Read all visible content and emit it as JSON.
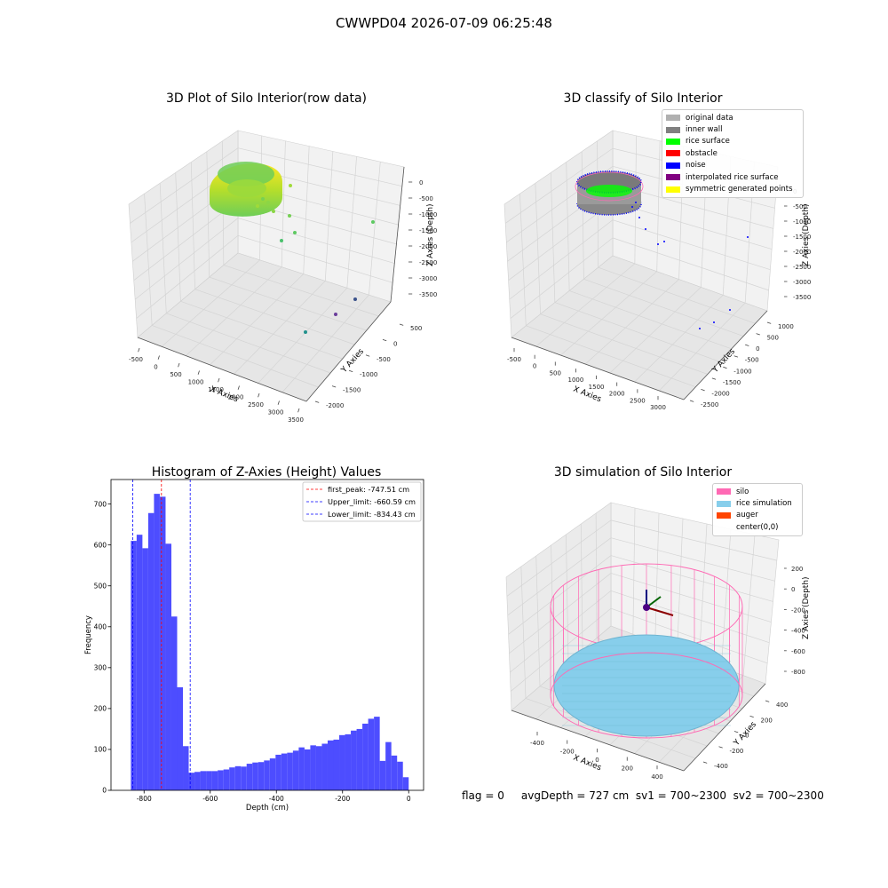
{
  "suptitle": "CWWPD04 2026-07-09 06:25:48",
  "status": {
    "text": "flag = 0     avgDepth = 727 cm  sv1 = 700~2300  sv2 = 700~2300"
  },
  "chart_data": [
    {
      "type": "scatter",
      "title": "3D Plot of Silo Interior(row data)",
      "xlabel": "X Axies",
      "ylabel": "Y Axies",
      "zlabel": "Z Axies (Depth)",
      "x_ticks": [
        "-500",
        "0",
        "500",
        "1000",
        "1500",
        "2000",
        "2500",
        "3000",
        "3500"
      ],
      "y_ticks": [
        "500",
        "0",
        "-500",
        "-1000",
        "-1500",
        "-2000"
      ],
      "z_ticks": [
        "0",
        "-500",
        "-1000",
        "-1500",
        "-2000",
        "-2500",
        "-3000",
        "-3500"
      ],
      "colormap": "viridis (by depth)",
      "scattered_points": [
        {
          "x": 900,
          "y": 200,
          "z": -250
        },
        {
          "x": 1100,
          "y": 100,
          "z": -500
        },
        {
          "x": 1300,
          "y": -50,
          "z": -750
        },
        {
          "x": 1500,
          "y": -200,
          "z": -1100
        },
        {
          "x": 2500,
          "y": -400,
          "z": -1250
        },
        {
          "x": 2900,
          "y": -1400,
          "z": -3100
        },
        {
          "x": 3100,
          "y": -1500,
          "z": -3300
        },
        {
          "x": 2700,
          "y": -1300,
          "z": -3500
        }
      ]
    },
    {
      "type": "scatter",
      "title": "3D classify of Silo Interior",
      "xlabel": "X Axies",
      "ylabel": "Y Axies",
      "zlabel": "Z Axies (Depth)",
      "x_ticks": [
        "-500",
        "0",
        "500",
        "1000",
        "1500",
        "2000",
        "2500",
        "3000"
      ],
      "y_ticks": [
        "1000",
        "500",
        "0",
        "-500",
        "-1000",
        "-1500",
        "-2000",
        "-2500"
      ],
      "z_ticks": [
        "0",
        "-500",
        "-1000",
        "-1500",
        "-2000",
        "-2500",
        "-3000",
        "-3500"
      ],
      "legend_position": "top-right",
      "legend": [
        {
          "name": "original data",
          "color": "#b0b0b0"
        },
        {
          "name": "inner wall",
          "color": "#808080"
        },
        {
          "name": "rice surface",
          "color": "#00ff00"
        },
        {
          "name": "obstacle",
          "color": "#ff0000"
        },
        {
          "name": "noise",
          "color": "#0000ff"
        },
        {
          "name": "interpolated rice surface",
          "color": "#800080"
        },
        {
          "name": "symmetric generated points",
          "color": "#ffff00"
        }
      ]
    },
    {
      "type": "bar",
      "title": "Histogram of Z-Axies (Height) Values",
      "xlabel": "Depth (cm)",
      "ylabel": "Frequency",
      "xlim": [
        -900,
        45
      ],
      "ylim": [
        0,
        760
      ],
      "x_ticks": [
        -800,
        -600,
        -400,
        -200,
        0
      ],
      "y_ticks": [
        0,
        100,
        200,
        300,
        400,
        500,
        600,
        700
      ],
      "bin_start": -840,
      "bin_width": 17.5,
      "bar_color": "#4d4dff",
      "values": [
        610,
        625,
        592,
        678,
        725,
        718,
        603,
        425,
        252,
        108,
        43,
        45,
        47,
        47,
        47,
        49,
        51,
        56,
        59,
        58,
        65,
        68,
        69,
        73,
        78,
        87,
        90,
        92,
        97,
        105,
        100,
        110,
        108,
        114,
        122,
        124,
        135,
        137,
        146,
        150,
        163,
        175,
        180,
        72,
        118,
        85,
        70,
        32
      ],
      "vlines": [
        {
          "label": "first_peak: -747.51 cm",
          "x": -747.51,
          "color": "#ff0000"
        },
        {
          "label": "Upper_limit: -660.59 cm",
          "x": -660.59,
          "color": "#0000ff"
        },
        {
          "label": "Lower_limit: -834.43 cm",
          "x": -834.43,
          "color": "#0000ff"
        }
      ]
    },
    {
      "type": "scatter",
      "title": "3D simulation of Silo Interior",
      "xlabel": "X Axies",
      "ylabel": "Y Axies",
      "zlabel": "Z Axies (Depth)",
      "x_ticks": [
        "-400",
        "-200",
        "0",
        "200",
        "400"
      ],
      "y_ticks": [
        "400",
        "200",
        "0",
        "-200",
        "-400"
      ],
      "z_ticks": [
        "200",
        "0",
        "-200",
        "-400",
        "-600",
        "-800"
      ],
      "legend_position": "top-right",
      "legend": [
        {
          "name": "silo",
          "color": "#ff69b4"
        },
        {
          "name": "rice simulation",
          "color": "#87ceeb"
        },
        {
          "name": "auger",
          "color": "#ff4500"
        },
        {
          "name": "center(0,0)",
          "color": ""
        }
      ]
    }
  ]
}
